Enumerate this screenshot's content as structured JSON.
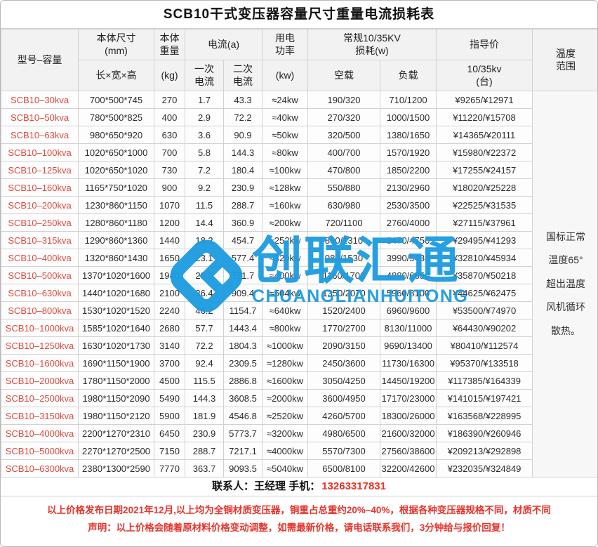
{
  "title": "SCB10干式变压器容量尺寸重量电流损耗表",
  "header": {
    "model": "型号–容量",
    "dims_top": "本体尺寸\n(mm)",
    "dims_bottom": "长×宽×高",
    "weight_top": "本体\n重量",
    "weight_bottom": "(kg)",
    "current_group": "电流(a)",
    "primary": "一次\n电流",
    "secondary": "二次\n电流",
    "power_top": "用电\n功率",
    "power_bottom": "(kw)",
    "loss_group": "常规10/35KV\n损耗(w)",
    "noload": "空载",
    "load": "负载",
    "price_top": "指导价",
    "price_bottom": "10/35kv\n(台)",
    "temp": "温度\n范围"
  },
  "temperature_note_lines": [
    "国标正常",
    "温度65°",
    "超出温度",
    "风机循环",
    "散热。"
  ],
  "table": {
    "col_keys": [
      "model",
      "dimensions",
      "weight",
      "primary-current",
      "secondary-current",
      "power",
      "noload-loss",
      "load-loss",
      "price"
    ],
    "rows": [
      [
        "SCB10–30kva",
        "700*500*745",
        "270",
        "1.7",
        "43.3",
        "≈24kw",
        "190/320",
        "710/1200",
        "¥9265/¥12971"
      ],
      [
        "SCB10–50kva",
        "780*500*825",
        "400",
        "2.9",
        "72.2",
        "≈40kw",
        "270/320",
        "1000/1500",
        "¥11220/¥15708"
      ],
      [
        "SCB10–63kva",
        "980*650*920",
        "630",
        "3.6",
        "90.9",
        "≈50kw",
        "320/500",
        "1380/1650",
        "¥14365/¥20111"
      ],
      [
        "SCB10–100kva",
        "1020*650*1000",
        "700",
        "5.8",
        "144.3",
        "≈80kw",
        "400/700",
        "1570/1920",
        "¥15980/¥22372"
      ],
      [
        "SCB10–125kva",
        "1020*650*1020",
        "730",
        "7.2",
        "180.4",
        "≈100kw",
        "470/800",
        "1850/2200",
        "¥17255/¥24157"
      ],
      [
        "SCB10–160kva",
        "1165*750*1020",
        "900",
        "9.2",
        "230.9",
        "≈128kw",
        "550/880",
        "2130/2960",
        "¥18020/¥25228"
      ],
      [
        "SCB10–200kva",
        "1230*860*1150",
        "1070",
        "11.5",
        "288.7",
        "≈160kw",
        "630/980",
        "2530/3500",
        "¥22525/¥31535"
      ],
      [
        "SCB10–250kva",
        "1280*860*1180",
        "1200",
        "14.4",
        "360.9",
        "≈200kw",
        "720/1100",
        "2760/4000",
        "¥27115/¥37961"
      ],
      [
        "SCB10–315kva",
        "1290*860*1360",
        "1440",
        "18.2",
        "454.7",
        "≈252kw",
        "880/1310",
        "3470/4750",
        "¥29495/¥41293"
      ],
      [
        "SCB10–400kva",
        "1320*860*1430",
        "1650",
        "23.1",
        "577.4",
        "≈320kw",
        "980/1530",
        "3990/5430",
        "¥32810/¥45934"
      ],
      [
        "SCB10–500kva",
        "1370*1020*1600",
        "1940",
        "28.9",
        "721.7",
        "≈400kw",
        "1160/1700",
        "4880/6650",
        "¥35870/¥50218"
      ],
      [
        "SCB10–630kva",
        "1440*1020*1680",
        "2100",
        "36.4",
        "909.4",
        "≈504kw",
        "1350/2070",
        "5960/8100",
        "¥44625/¥62475"
      ],
      [
        "SCB10–800kva",
        "1530*1020*1520",
        "2240",
        "46.2",
        "1154.7",
        "≈640kw",
        "1520/2400",
        "6960/9600",
        "¥53500/¥74970"
      ],
      [
        "SCB10–1000kva",
        "1585*1020*1640",
        "2680",
        "57.7",
        "1443.4",
        "≈800kw",
        "1770/2700",
        "8130/11000",
        "¥64430/¥90202"
      ],
      [
        "SCB10–1250kva",
        "1630*1020*1730",
        "3140",
        "72.2",
        "1804.3",
        "≈1000kw",
        "2090/3150",
        "9690/13400",
        "¥80410/¥112574"
      ],
      [
        "SCB10–1600kva",
        "1690*1150*1900",
        "3700",
        "92.4",
        "2309.5",
        "≈1280kw",
        "2450/3600",
        "11730/16300",
        "¥95370/¥133518"
      ],
      [
        "SCB10–2000kva",
        "1780*1150*2000",
        "4500",
        "115.5",
        "2886.8",
        "≈1600kw",
        "3050/4250",
        "14450/19200",
        "¥117385/¥164339"
      ],
      [
        "SCB10–2500kva",
        "1980*1150*2090",
        "5490",
        "144.3",
        "3608.5",
        "≈2000kw",
        "3600/4950",
        "17170/23000",
        "¥141015/¥197421"
      ],
      [
        "SCB10–3150kva",
        "1980*1150*2120",
        "5900",
        "181.9",
        "4546.8",
        "≈2520kw",
        "4260/5700",
        "18300/26000",
        "¥163568/¥228995"
      ],
      [
        "SCB10–4000kva",
        "2200*1270*2310",
        "6450",
        "230.9",
        "5773.7",
        "≈3200kw",
        "4980/6500",
        "21600/32000",
        "¥186390/¥260946"
      ],
      [
        "SCB10–5000kva",
        "2270*1270*2500",
        "7150",
        "288.7",
        "7217.1",
        "≈4000kw",
        "5570/7300",
        "27560/38600",
        "¥209213/¥292898"
      ],
      [
        "SCB10–6300kva",
        "2380*1300*2590",
        "7770",
        "363.7",
        "9093.5",
        "≈5040kw",
        "6500/8100",
        "32200/42600",
        "¥232035/¥324849"
      ]
    ]
  },
  "watermark": {
    "cn": "创联汇通",
    "en": "CHUANGLIANHUITONG",
    "color": "#1b9ce0"
  },
  "contact": {
    "label": "联系人：王经理 手机：",
    "phone": "13263317831"
  },
  "disclaimer": {
    "line1": "以上价格发布日期2021年12月,以上均为全铜材质变压器，铜重占总重约20%–40%，根据各种变压器规格不同，材质不同",
    "line2": "声明：以上价格会随着原材料价格变动调整，如需最新价格，请电话联系我们，3分钟给与报价回复！"
  },
  "colors": {
    "accent_blue": "#1b9ce0",
    "model_red": "#dd4a3e",
    "warning_red": "#e5342c",
    "header_bg": "#f2f2f2",
    "border": "#d2d2d2"
  }
}
